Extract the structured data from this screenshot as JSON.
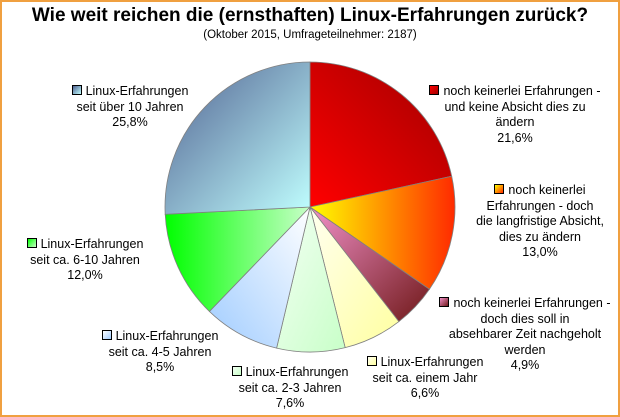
{
  "chart_data": {
    "type": "pie",
    "title": "Wie weit reichen die (ernsthaften) Linux-Erfahrungen zurück?",
    "subtitle": "(Oktober 2015, Umfrageteilnehmer: 2187)",
    "start_angle": "top",
    "direction": "clockwise",
    "slices": [
      {
        "lines": [
          "noch keinerlei Erfahrungen -",
          "und keine Absicht dies zu",
          "ändern"
        ],
        "value": 21.6,
        "value_label": "21,6%",
        "colors": [
          "#ff0000",
          "#a00000"
        ]
      },
      {
        "lines": [
          "noch keinerlei",
          "Erfahrungen - doch",
          "die langfristige Absicht,",
          "dies zu ändern"
        ],
        "value": 13.0,
        "value_label": "13,0%",
        "colors": [
          "#ffff00",
          "#ff2a00"
        ]
      },
      {
        "lines": [
          "noch keinerlei Erfahrungen -",
          "doch dies soll in",
          "absehbarer Zeit nachgeholt",
          "werden"
        ],
        "value": 4.9,
        "value_label": "4,9%",
        "colors": [
          "#f090c8",
          "#701818"
        ]
      },
      {
        "lines": [
          "Linux-Erfahrungen",
          "seit ca. einem Jahr"
        ],
        "value": 6.6,
        "value_label": "6,6%",
        "colors": [
          "#fffff0",
          "#ffffa0"
        ]
      },
      {
        "lines": [
          "Linux-Erfahrungen",
          "seit ca. 2-3 Jahren"
        ],
        "value": 7.6,
        "value_label": "7,6%",
        "colors": [
          "#f4fff4",
          "#c8ffc8"
        ]
      },
      {
        "lines": [
          "Linux-Erfahrungen",
          "seit ca. 4-5 Jahren"
        ],
        "value": 8.5,
        "value_label": "8,5%",
        "colors": [
          "#ffffff",
          "#a0ccff"
        ]
      },
      {
        "lines": [
          "Linux-Erfahrungen",
          "seit ca. 6-10 Jahren"
        ],
        "value": 12.0,
        "value_label": "12,0%",
        "colors": [
          "#00ff00",
          "#c8ffc8"
        ]
      },
      {
        "lines": [
          "Linux-Erfahrungen",
          "seit über 10 Jahren"
        ],
        "value": 25.8,
        "value_label": "25,8%",
        "colors": [
          "#506090",
          "#c0ffff"
        ]
      }
    ]
  }
}
